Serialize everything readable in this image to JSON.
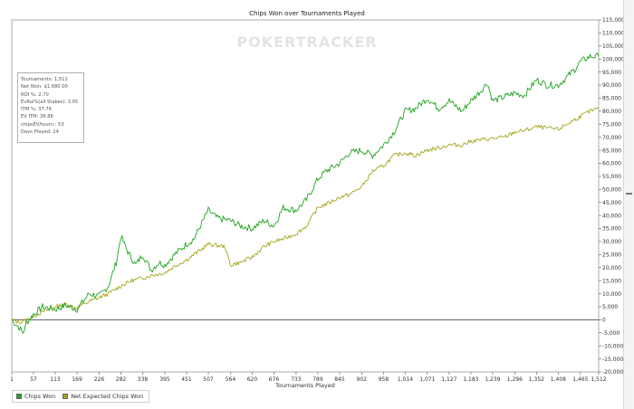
{
  "chart_data": {
    "type": "line",
    "title": "Chips Won over Tournaments Played",
    "xlabel": "Tournaments Played",
    "ylabel": "",
    "xlim": [
      1,
      1512
    ],
    "ylim": [
      -20000,
      115000
    ],
    "x_ticks": [
      "1",
      "57",
      "113",
      "169",
      "226",
      "282",
      "338",
      "395",
      "451",
      "507",
      "564",
      "620",
      "676",
      "733",
      "789",
      "845",
      "902",
      "958",
      "1,014",
      "1,071",
      "1,127",
      "1,183",
      "1,239",
      "1,296",
      "1,352",
      "1,408",
      "1,465",
      "1,512"
    ],
    "x_tick_values": [
      1,
      57,
      113,
      169,
      226,
      282,
      338,
      395,
      451,
      507,
      564,
      620,
      676,
      733,
      789,
      845,
      902,
      958,
      1014,
      1071,
      1127,
      1183,
      1239,
      1296,
      1352,
      1408,
      1465,
      1512
    ],
    "y_ticks": [
      "115,000",
      "110,000",
      "105,000",
      "100,000",
      "95,000",
      "90,000",
      "85,000",
      "80,000",
      "75,000",
      "70,000",
      "65,000",
      "60,000",
      "55,000",
      "50,000",
      "45,000",
      "40,000",
      "35,000",
      "30,000",
      "25,000",
      "20,000",
      "15,000",
      "10,000",
      "5,000",
      "0",
      "-5,000",
      "-10,000",
      "-15,000",
      "-20,000"
    ],
    "y_tick_values": [
      115000,
      110000,
      105000,
      100000,
      95000,
      90000,
      85000,
      80000,
      75000,
      70000,
      65000,
      60000,
      55000,
      50000,
      45000,
      40000,
      35000,
      30000,
      25000,
      20000,
      15000,
      10000,
      5000,
      0,
      -5000,
      -10000,
      -15000,
      -20000
    ],
    "grid": false,
    "legend_position": "bottom-left",
    "series": [
      {
        "name": "Chips Won",
        "color": "#1fa31f",
        "points": [
          [
            1,
            0
          ],
          [
            20,
            -3000
          ],
          [
            30,
            -5000
          ],
          [
            40,
            -1000
          ],
          [
            57,
            2000
          ],
          [
            80,
            5000
          ],
          [
            113,
            4000
          ],
          [
            140,
            5500
          ],
          [
            169,
            4000
          ],
          [
            200,
            10000
          ],
          [
            226,
            9000
          ],
          [
            250,
            13000
          ],
          [
            270,
            22000
          ],
          [
            282,
            32000
          ],
          [
            300,
            26000
          ],
          [
            320,
            21000
          ],
          [
            338,
            25000
          ],
          [
            360,
            19000
          ],
          [
            380,
            22000
          ],
          [
            395,
            21000
          ],
          [
            420,
            25000
          ],
          [
            451,
            29000
          ],
          [
            470,
            31000
          ],
          [
            490,
            37000
          ],
          [
            507,
            42000
          ],
          [
            530,
            39000
          ],
          [
            564,
            38000
          ],
          [
            590,
            36000
          ],
          [
            620,
            35000
          ],
          [
            650,
            38000
          ],
          [
            676,
            36000
          ],
          [
            700,
            43000
          ],
          [
            733,
            42000
          ],
          [
            760,
            46000
          ],
          [
            789,
            54000
          ],
          [
            810,
            57000
          ],
          [
            845,
            60000
          ],
          [
            870,
            64000
          ],
          [
            902,
            65000
          ],
          [
            930,
            63000
          ],
          [
            958,
            67000
          ],
          [
            985,
            72000
          ],
          [
            1014,
            80000
          ],
          [
            1040,
            81000
          ],
          [
            1071,
            85000
          ],
          [
            1100,
            81000
          ],
          [
            1127,
            84000
          ],
          [
            1160,
            80000
          ],
          [
            1183,
            84000
          ],
          [
            1210,
            88000
          ],
          [
            1225,
            91000
          ],
          [
            1239,
            84000
          ],
          [
            1260,
            85000
          ],
          [
            1296,
            87000
          ],
          [
            1320,
            86000
          ],
          [
            1352,
            92000
          ],
          [
            1380,
            90000
          ],
          [
            1408,
            90000
          ],
          [
            1430,
            93000
          ],
          [
            1450,
            96000
          ],
          [
            1465,
            99000
          ],
          [
            1490,
            101000
          ],
          [
            1512,
            101000
          ]
        ]
      },
      {
        "name": "Net Expected Chips Won",
        "color": "#a4a41e",
        "points": [
          [
            1,
            0
          ],
          [
            20,
            -1000
          ],
          [
            40,
            0
          ],
          [
            57,
            1500
          ],
          [
            80,
            3000
          ],
          [
            113,
            5000
          ],
          [
            140,
            6000
          ],
          [
            169,
            4500
          ],
          [
            200,
            7000
          ],
          [
            226,
            8500
          ],
          [
            250,
            10000
          ],
          [
            282,
            13000
          ],
          [
            310,
            15000
          ],
          [
            338,
            16000
          ],
          [
            360,
            17000
          ],
          [
            395,
            18000
          ],
          [
            420,
            20500
          ],
          [
            451,
            23000
          ],
          [
            480,
            26000
          ],
          [
            507,
            29000
          ],
          [
            530,
            28500
          ],
          [
            550,
            28000
          ],
          [
            564,
            21000
          ],
          [
            590,
            22000
          ],
          [
            620,
            24000
          ],
          [
            650,
            28000
          ],
          [
            676,
            30000
          ],
          [
            700,
            31000
          ],
          [
            733,
            33000
          ],
          [
            760,
            36000
          ],
          [
            789,
            43000
          ],
          [
            820,
            45000
          ],
          [
            845,
            47000
          ],
          [
            870,
            48000
          ],
          [
            902,
            51000
          ],
          [
            930,
            57000
          ],
          [
            958,
            59000
          ],
          [
            985,
            63000
          ],
          [
            1014,
            64000
          ],
          [
            1040,
            63000
          ],
          [
            1071,
            65000
          ],
          [
            1100,
            66000
          ],
          [
            1127,
            67000
          ],
          [
            1160,
            67000
          ],
          [
            1183,
            68500
          ],
          [
            1210,
            69000
          ],
          [
            1239,
            69500
          ],
          [
            1270,
            70000
          ],
          [
            1296,
            72000
          ],
          [
            1320,
            72500
          ],
          [
            1352,
            74000
          ],
          [
            1380,
            73500
          ],
          [
            1408,
            73000
          ],
          [
            1430,
            75000
          ],
          [
            1465,
            78000
          ],
          [
            1490,
            80000
          ],
          [
            1512,
            81000
          ]
        ]
      }
    ],
    "stats": [
      "Tournaments: 1,512",
      "Net Won: $1,680.00",
      "ROI %: 2.70",
      "EvRoi%(all Stakes): 3.05",
      "ITM %: 37.76",
      "EV ITM: 36.86",
      "chipsEV/tourn.: 53",
      "Days Played: 24"
    ],
    "watermark": "POKERTRACKER"
  }
}
